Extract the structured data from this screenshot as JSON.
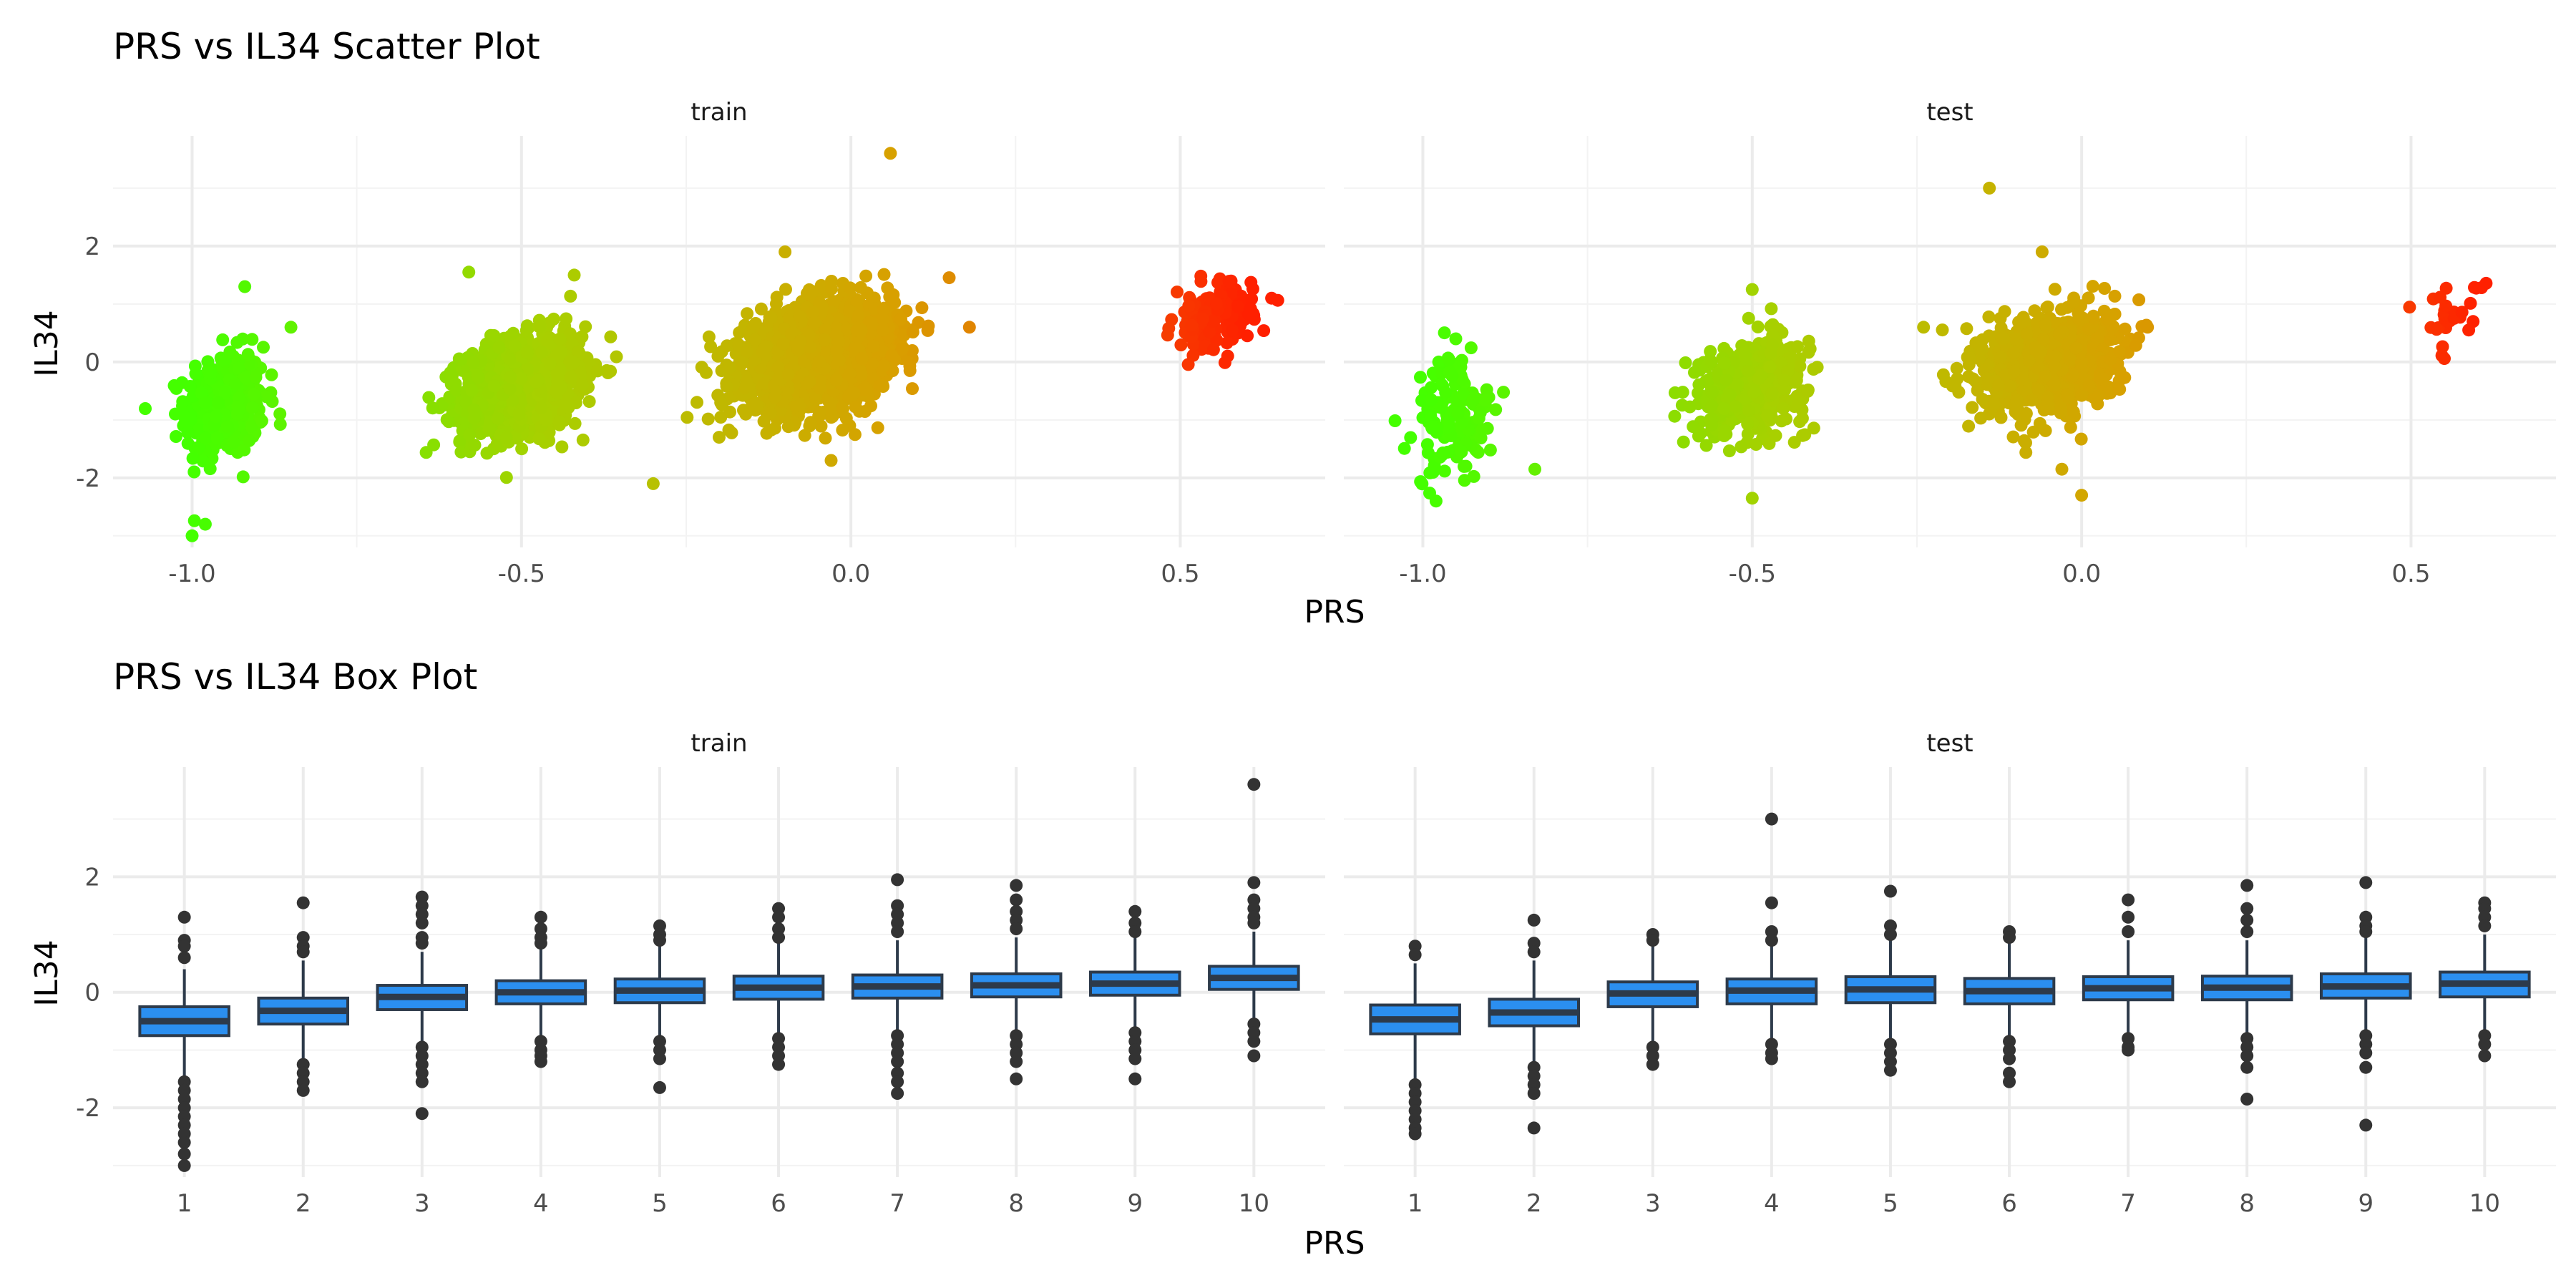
{
  "chart_data": [
    {
      "type": "scatter",
      "title": "PRS vs IL34 Scatter Plot",
      "xlabel": "PRS",
      "ylabel": "IL34",
      "xlim": [
        -1.12,
        0.72
      ],
      "ylim": [
        -3.2,
        3.9
      ],
      "xticks": [
        -1.0,
        -0.5,
        0.0,
        0.5
      ],
      "xtick_labels": [
        "-1.0",
        "-0.5",
        "0.0",
        "0.5"
      ],
      "yticks": [
        -2,
        0,
        2
      ],
      "ytick_labels": [
        "-2",
        "0",
        "2"
      ],
      "grid": true,
      "legend": "none",
      "color_scale": [
        "#44ff00",
        "#a8d000",
        "#d8a000",
        "#ff2000"
      ],
      "panels": [
        {
          "name": "train",
          "clusters": [
            {
              "center_x": -0.95,
              "center_y": -0.75,
              "spread_x": 0.03,
              "spread_y": 0.45,
              "n": 420
            },
            {
              "center_x": -0.5,
              "center_y": -0.4,
              "spread_x": 0.045,
              "spread_y": 0.4,
              "n": 1300
            },
            {
              "center_x": -0.05,
              "center_y": 0.1,
              "spread_x": 0.055,
              "spread_y": 0.42,
              "n": 2100
            },
            {
              "center_x": 0.55,
              "center_y": 0.75,
              "spread_x": 0.03,
              "spread_y": 0.28,
              "n": 160
            }
          ],
          "outliers": [
            {
              "x": 0.06,
              "y": 3.6
            },
            {
              "x": -0.3,
              "y": -2.1
            },
            {
              "x": -0.92,
              "y": 1.3
            },
            {
              "x": -0.85,
              "y": 0.6
            },
            {
              "x": -1.0,
              "y": -3.0
            },
            {
              "x": -0.98,
              "y": -2.8
            },
            {
              "x": -0.42,
              "y": 1.5
            },
            {
              "x": -0.58,
              "y": 1.55
            },
            {
              "x": 0.18,
              "y": 0.6
            },
            {
              "x": -0.2,
              "y": -1.3
            },
            {
              "x": -0.1,
              "y": 1.9
            },
            {
              "x": -0.03,
              "y": -1.7
            }
          ]
        },
        {
          "name": "test",
          "clusters": [
            {
              "center_x": -0.95,
              "center_y": -0.95,
              "spread_x": 0.03,
              "spread_y": 0.55,
              "n": 140
            },
            {
              "center_x": -0.5,
              "center_y": -0.4,
              "spread_x": 0.04,
              "spread_y": 0.38,
              "n": 560
            },
            {
              "center_x": -0.05,
              "center_y": 0.0,
              "spread_x": 0.05,
              "spread_y": 0.42,
              "n": 900
            },
            {
              "center_x": 0.56,
              "center_y": 0.75,
              "spread_x": 0.025,
              "spread_y": 0.28,
              "n": 30
            }
          ],
          "outliers": [
            {
              "x": -0.14,
              "y": 3.0
            },
            {
              "x": -0.5,
              "y": -2.35
            },
            {
              "x": 0.0,
              "y": -2.3
            },
            {
              "x": -0.03,
              "y": -1.85
            },
            {
              "x": -0.83,
              "y": -1.85
            },
            {
              "x": -0.95,
              "y": 0.4
            },
            {
              "x": -0.5,
              "y": 1.25
            },
            {
              "x": -0.24,
              "y": 0.6
            },
            {
              "x": 0.1,
              "y": 0.6
            },
            {
              "x": -0.06,
              "y": 1.9
            },
            {
              "x": -0.98,
              "y": -2.4
            }
          ]
        }
      ]
    },
    {
      "type": "box",
      "title": "PRS vs IL34 Box Plot",
      "xlabel": "PRS",
      "ylabel": "IL34",
      "categories": [
        "1",
        "2",
        "3",
        "4",
        "5",
        "6",
        "7",
        "8",
        "9",
        "10"
      ],
      "ylim": [
        -3.2,
        3.9
      ],
      "yticks": [
        -2,
        0,
        2
      ],
      "ytick_labels": [
        "-2",
        "0",
        "2"
      ],
      "grid": true,
      "box_fill": "#2b8ff0",
      "box_stroke": "#2d3a4a",
      "panels": [
        {
          "name": "train",
          "boxes": [
            {
              "category": "1",
              "q1": -0.75,
              "median": -0.5,
              "q3": -0.25,
              "whisker_low": -1.45,
              "whisker_high": 0.4,
              "outliers": [
                1.3,
                0.9,
                0.8,
                0.6,
                -1.55,
                -1.7,
                -1.85,
                -2.0,
                -2.15,
                -2.3,
                -2.45,
                -2.6,
                -2.8,
                -3.0
              ]
            },
            {
              "category": "2",
              "q1": -0.55,
              "median": -0.32,
              "q3": -0.1,
              "whisker_low": -1.15,
              "whisker_high": 0.55,
              "outliers": [
                1.55,
                0.95,
                0.8,
                0.7,
                -1.25,
                -1.4,
                -1.55,
                -1.7
              ]
            },
            {
              "category": "3",
              "q1": -0.3,
              "median": -0.08,
              "q3": 0.12,
              "whisker_low": -0.9,
              "whisker_high": 0.7,
              "outliers": [
                1.65,
                1.5,
                1.35,
                1.2,
                0.95,
                0.85,
                -0.95,
                -1.1,
                -1.25,
                -1.4,
                -1.55,
                -2.1
              ]
            },
            {
              "category": "4",
              "q1": -0.2,
              "median": 0.0,
              "q3": 0.2,
              "whisker_low": -0.75,
              "whisker_high": 0.75,
              "outliers": [
                1.3,
                1.1,
                0.95,
                0.85,
                -0.85,
                -1.0,
                -1.1,
                -1.2
              ]
            },
            {
              "category": "5",
              "q1": -0.18,
              "median": 0.03,
              "q3": 0.23,
              "whisker_low": -0.75,
              "whisker_high": 0.8,
              "outliers": [
                1.15,
                1.0,
                0.9,
                -0.85,
                -1.0,
                -1.15,
                -1.65
              ]
            },
            {
              "category": "6",
              "q1": -0.12,
              "median": 0.08,
              "q3": 0.28,
              "whisker_low": -0.7,
              "whisker_high": 0.85,
              "outliers": [
                1.45,
                1.3,
                1.1,
                0.95,
                -0.8,
                -0.95,
                -1.1,
                -1.25
              ]
            },
            {
              "category": "7",
              "q1": -0.1,
              "median": 0.1,
              "q3": 0.3,
              "whisker_low": -0.7,
              "whisker_high": 0.9,
              "outliers": [
                1.95,
                1.5,
                1.35,
                1.2,
                1.05,
                -0.75,
                -0.9,
                -1.05,
                -1.2,
                -1.4,
                -1.55,
                -1.75
              ]
            },
            {
              "category": "8",
              "q1": -0.08,
              "median": 0.12,
              "q3": 0.32,
              "whisker_low": -0.7,
              "whisker_high": 0.95,
              "outliers": [
                1.85,
                1.6,
                1.4,
                1.25,
                1.1,
                -0.75,
                -0.9,
                -1.05,
                -1.2,
                -1.5
              ]
            },
            {
              "category": "9",
              "q1": -0.05,
              "median": 0.15,
              "q3": 0.35,
              "whisker_low": -0.65,
              "whisker_high": 0.95,
              "outliers": [
                1.4,
                1.2,
                1.05,
                -0.7,
                -0.85,
                -1.0,
                -1.15,
                -1.5
              ]
            },
            {
              "category": "10",
              "q1": 0.05,
              "median": 0.25,
              "q3": 0.45,
              "whisker_low": -0.5,
              "whisker_high": 1.05,
              "outliers": [
                3.6,
                1.9,
                1.6,
                1.45,
                1.3,
                1.2,
                -0.55,
                -0.7,
                -0.85,
                -1.1
              ]
            }
          ]
        },
        {
          "name": "test",
          "boxes": [
            {
              "category": "1",
              "q1": -0.72,
              "median": -0.47,
              "q3": -0.22,
              "whisker_low": -1.5,
              "whisker_high": 0.5,
              "outliers": [
                0.8,
                0.65,
                -1.6,
                -1.75,
                -1.9,
                -2.05,
                -2.2,
                -2.35,
                -2.45
              ]
            },
            {
              "category": "2",
              "q1": -0.58,
              "median": -0.35,
              "q3": -0.12,
              "whisker_low": -1.2,
              "whisker_high": 0.55,
              "outliers": [
                1.25,
                0.85,
                0.7,
                -1.3,
                -1.45,
                -1.6,
                -1.75,
                -2.35
              ]
            },
            {
              "category": "3",
              "q1": -0.25,
              "median": -0.02,
              "q3": 0.18,
              "whisker_low": -0.85,
              "whisker_high": 0.8,
              "outliers": [
                1.0,
                0.9,
                -0.95,
                -1.1,
                -1.25
              ]
            },
            {
              "category": "4",
              "q1": -0.2,
              "median": 0.03,
              "q3": 0.23,
              "whisker_low": -0.8,
              "whisker_high": 0.8,
              "outliers": [
                3.0,
                1.55,
                1.05,
                0.9,
                -0.9,
                -1.05,
                -1.15
              ]
            },
            {
              "category": "5",
              "q1": -0.18,
              "median": 0.05,
              "q3": 0.27,
              "whisker_low": -0.8,
              "whisker_high": 0.9,
              "outliers": [
                1.75,
                1.15,
                1.0,
                -0.9,
                -1.05,
                -1.2,
                -1.35
              ]
            },
            {
              "category": "6",
              "q1": -0.2,
              "median": 0.02,
              "q3": 0.24,
              "whisker_low": -0.8,
              "whisker_high": 0.85,
              "outliers": [
                1.05,
                0.95,
                -0.85,
                -1.0,
                -1.15,
                -1.4,
                -1.55
              ]
            },
            {
              "category": "7",
              "q1": -0.13,
              "median": 0.07,
              "q3": 0.27,
              "whisker_low": -0.75,
              "whisker_high": 0.9,
              "outliers": [
                1.6,
                1.3,
                1.05,
                -0.8,
                -0.95,
                -1.0
              ]
            },
            {
              "category": "8",
              "q1": -0.13,
              "median": 0.08,
              "q3": 0.28,
              "whisker_low": -0.75,
              "whisker_high": 0.9,
              "outliers": [
                1.85,
                1.45,
                1.25,
                1.05,
                -0.8,
                -0.95,
                -1.1,
                -1.3,
                -1.85
              ]
            },
            {
              "category": "9",
              "q1": -0.1,
              "median": 0.1,
              "q3": 0.32,
              "whisker_low": -0.7,
              "whisker_high": 0.95,
              "outliers": [
                1.9,
                1.3,
                1.15,
                1.05,
                -0.75,
                -0.9,
                -1.05,
                -1.3,
                -2.3
              ]
            },
            {
              "category": "10",
              "q1": -0.08,
              "median": 0.15,
              "q3": 0.35,
              "whisker_low": -0.7,
              "whisker_high": 1.0,
              "outliers": [
                1.55,
                1.45,
                1.3,
                1.15,
                -0.75,
                -0.9,
                -1.1
              ]
            }
          ]
        }
      ]
    }
  ]
}
